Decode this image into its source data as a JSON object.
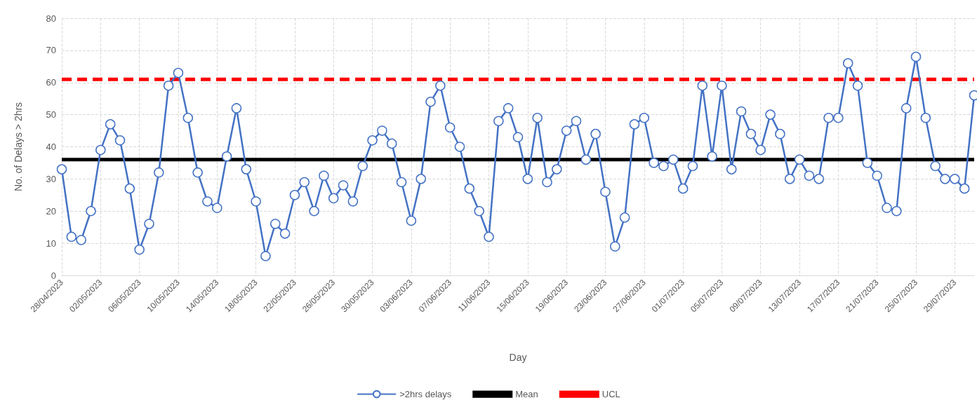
{
  "chart_data": {
    "type": "line",
    "xlabel": "Day",
    "ylabel": "No. of Delays > 2hrs",
    "categories": [
      "28/04/2023",
      null,
      null,
      null,
      "02/05/2023",
      null,
      null,
      null,
      "06/05/2023",
      null,
      null,
      null,
      "10/05/2023",
      null,
      null,
      null,
      "14/05/2023",
      null,
      null,
      null,
      "18/05/2023",
      null,
      null,
      null,
      "22/05/2023",
      null,
      null,
      null,
      "26/05/2023",
      null,
      null,
      null,
      "30/05/2023",
      null,
      null,
      null,
      "03/06/2023",
      null,
      null,
      null,
      "07/06/2023",
      null,
      null,
      null,
      "11/06/2023",
      null,
      null,
      null,
      "15/06/2023",
      null,
      null,
      null,
      "19/06/2023",
      null,
      null,
      null,
      "23/06/2023",
      null,
      null,
      null,
      "27/06/2023",
      null,
      null,
      null,
      "01/07/2023",
      null,
      null,
      null,
      "05/07/2023",
      null,
      null,
      null,
      "09/07/2023",
      null,
      null,
      null,
      "13/07/2023",
      null,
      null,
      null,
      "17/07/2023",
      null,
      null,
      null,
      "21/07/2023",
      null,
      null,
      null,
      "25/07/2023",
      null,
      null,
      null,
      "29/07/2023",
      null,
      null
    ],
    "series": [
      {
        "name": ">2hrs delays",
        "color": "#4472c4",
        "marker": "circle",
        "line_style": "solid",
        "values": [
          33,
          12,
          11,
          20,
          39,
          47,
          42,
          27,
          8,
          16,
          32,
          59,
          63,
          49,
          32,
          23,
          21,
          37,
          52,
          33,
          23,
          6,
          16,
          13,
          25,
          29,
          20,
          31,
          24,
          28,
          23,
          34,
          42,
          45,
          41,
          29,
          17,
          30,
          54,
          59,
          46,
          40,
          27,
          20,
          12,
          48,
          52,
          43,
          30,
          49,
          29,
          33,
          45,
          48,
          36,
          44,
          26,
          9,
          18,
          47,
          49,
          35,
          34,
          36,
          27,
          34,
          59,
          37,
          59,
          33,
          51,
          44,
          39,
          50,
          44,
          30,
          36,
          31,
          30,
          49,
          49,
          66,
          59,
          35,
          31,
          21,
          20,
          52,
          68,
          49,
          34,
          30,
          30,
          27,
          56
        ]
      },
      {
        "name": "Mean",
        "color": "#000000",
        "marker": "none",
        "line_style": "solid",
        "values": [
          36,
          36,
          36,
          36,
          36,
          36,
          36,
          36,
          36,
          36,
          36,
          36,
          36,
          36,
          36,
          36,
          36,
          36,
          36,
          36,
          36,
          36,
          36,
          36,
          36,
          36,
          36,
          36,
          36,
          36,
          36,
          36,
          36,
          36,
          36,
          36,
          36,
          36,
          36,
          36,
          36,
          36,
          36,
          36,
          36,
          36,
          36,
          36,
          36,
          36,
          36,
          36,
          36,
          36,
          36,
          36,
          36,
          36,
          36,
          36,
          36,
          36,
          36,
          36,
          36,
          36,
          36,
          36,
          36,
          36,
          36,
          36,
          36,
          36,
          36,
          36,
          36,
          36,
          36,
          36,
          36,
          36,
          36,
          36,
          36,
          36,
          36,
          36,
          36,
          36,
          36,
          36,
          36,
          36,
          36
        ]
      },
      {
        "name": "UCL",
        "color": "#ff0000",
        "marker": "none",
        "line_style": "dashed",
        "values": [
          61,
          61,
          61,
          61,
          61,
          61,
          61,
          61,
          61,
          61,
          61,
          61,
          61,
          61,
          61,
          61,
          61,
          61,
          61,
          61,
          61,
          61,
          61,
          61,
          61,
          61,
          61,
          61,
          61,
          61,
          61,
          61,
          61,
          61,
          61,
          61,
          61,
          61,
          61,
          61,
          61,
          61,
          61,
          61,
          61,
          61,
          61,
          61,
          61,
          61,
          61,
          61,
          61,
          61,
          61,
          61,
          61,
          61,
          61,
          61,
          61,
          61,
          61,
          61,
          61,
          61,
          61,
          61,
          61,
          61,
          61,
          61,
          61,
          61,
          61,
          61,
          61,
          61,
          61,
          61,
          61,
          61,
          61,
          61,
          61,
          61,
          61,
          61,
          61,
          61,
          61,
          61,
          61,
          61,
          61
        ]
      }
    ],
    "ylim": [
      0,
      80
    ],
    "yticks": [
      0,
      10,
      20,
      30,
      40,
      50,
      60,
      70,
      80
    ],
    "grid": true,
    "legend": "bottom"
  }
}
